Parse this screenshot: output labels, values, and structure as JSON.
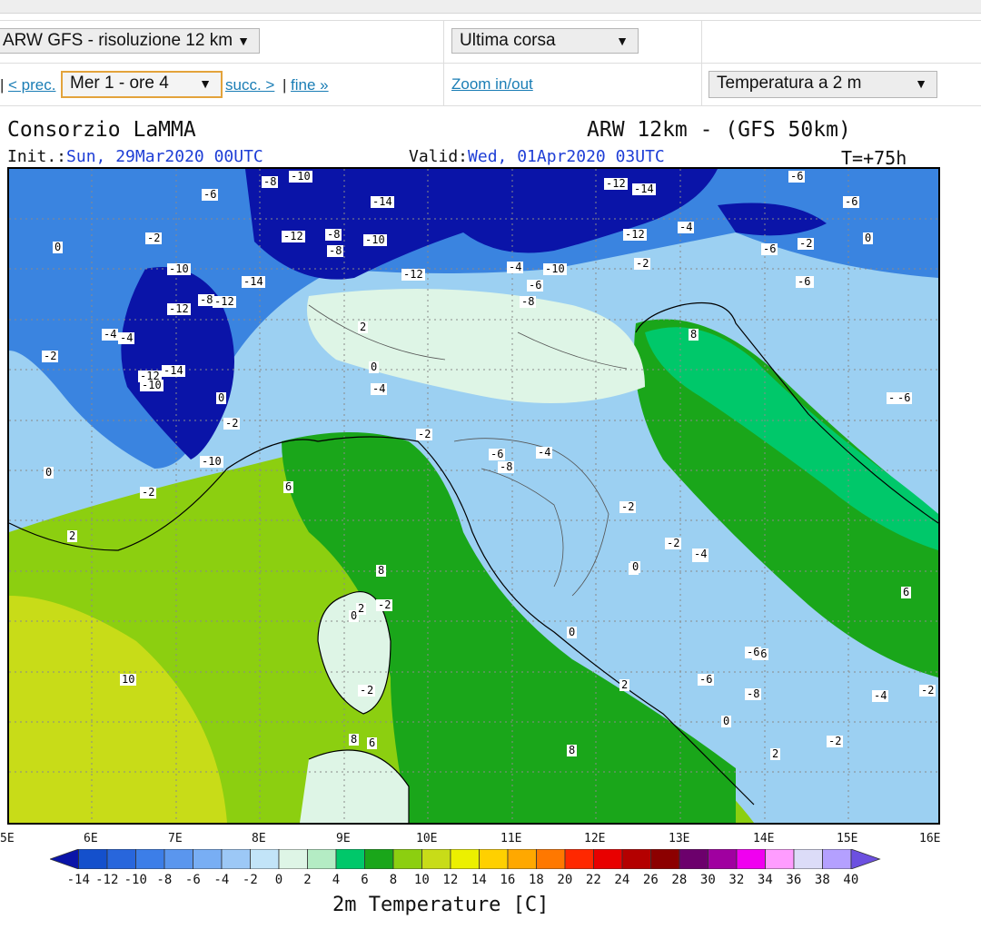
{
  "toolbar": {
    "model_select": "ARW GFS - risoluzione 12 km",
    "run_select": "Ultima corsa",
    "time_select": "Mer 1 - ore 4",
    "prev_link": "< prec.",
    "next_link": "succ. >",
    "end_link": "fine »",
    "zoom_link": "Zoom in/out",
    "variable_select": "Temperatura a 2 m",
    "separator": "|"
  },
  "map": {
    "producer": "Consorzio LaMMA",
    "model_title": "ARW 12km - (GFS 50km)",
    "init_label": "Init.:",
    "init_value": "Sun, 29Mar2020 00UTC",
    "valid_label": "Valid:",
    "valid_value": "Wed, 01Apr2020 03UTC",
    "forecast_hour": "T=+75h",
    "longitudes": [
      "5E",
      "6E",
      "7E",
      "8E",
      "9E",
      "10E",
      "11E",
      "12E",
      "13E",
      "14E",
      "15E",
      "16E"
    ],
    "labels": [
      "-6",
      "-8",
      "-10",
      "-14",
      "-12",
      "-14",
      "-6",
      "-12",
      "-8",
      "-12",
      "-10",
      "-4",
      "-10",
      "-12",
      "-14",
      "-12",
      "-4",
      "-6",
      "-10",
      "-2",
      "-12",
      "-6",
      "-8",
      "-2",
      "-6",
      "-2",
      "-12",
      "-4",
      "0",
      "-6",
      "-8",
      "-2",
      "0",
      "2",
      "-6",
      "-4",
      "-2",
      "-10",
      "-14",
      "-4",
      "0",
      "-2",
      "-8",
      "-10",
      "0",
      "-2",
      "-6",
      "-4",
      "-6",
      "0",
      "-6",
      "6",
      "2",
      "8",
      "-2",
      "6",
      "-2",
      "0",
      "-2",
      "-2",
      "-4",
      "0",
      "2",
      "0",
      "10",
      "0",
      "-2",
      "8",
      "-8",
      "6",
      "8",
      "8",
      "-6",
      "-6",
      "-8",
      "0",
      "-4",
      "2",
      "-2",
      "-6",
      "2",
      "-4",
      "2"
    ],
    "colors": {
      "deep_blue": "#0a14a8",
      "mid_blue": "#3a84e0",
      "light_blue": "#9cd0f2",
      "pale_green": "#def5e6",
      "sea_green": "#00c86a",
      "green": "#1aa61a",
      "lime": "#8ccf10",
      "yellow_green": "#c8dc18"
    }
  },
  "colorbar": {
    "title": "2m Temperature [C]",
    "ticks": [
      "-14",
      "-12",
      "-10",
      "-8",
      "-6",
      "-4",
      "-2",
      "0",
      "2",
      "4",
      "6",
      "8",
      "10",
      "12",
      "14",
      "16",
      "18",
      "20",
      "22",
      "24",
      "26",
      "28",
      "30",
      "32",
      "34",
      "36",
      "38",
      "40"
    ],
    "colors": [
      "#0a14a8",
      "#1450cc",
      "#2866dc",
      "#3c7ee8",
      "#5a96ee",
      "#78aef4",
      "#9cc8f6",
      "#c2e4f8",
      "#def5e6",
      "#b4ecc4",
      "#00c86a",
      "#1aa61a",
      "#8ccf10",
      "#c8dc18",
      "#ecf000",
      "#ffd000",
      "#ffa800",
      "#ff7800",
      "#ff2800",
      "#e80000",
      "#b40000",
      "#8c0000",
      "#6c006c",
      "#a000a0",
      "#f000f0",
      "#ff9cff",
      "#dcdcf8",
      "#b4a0ff",
      "#6c50e0"
    ]
  }
}
